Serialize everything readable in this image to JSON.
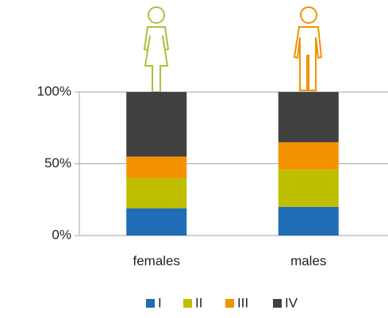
{
  "chart_data": {
    "type": "stacked_bar",
    "categories": [
      "females",
      "males"
    ],
    "series": [
      {
        "name": "I",
        "color": "#1f6db5",
        "values": [
          19,
          20
        ]
      },
      {
        "name": "II",
        "color": "#bfbf00",
        "values": [
          21,
          26
        ]
      },
      {
        "name": "III",
        "color": "#f39200",
        "values": [
          15,
          19
        ]
      },
      {
        "name": "IV",
        "color": "#404040",
        "values": [
          45,
          35
        ]
      }
    ],
    "ylim": [
      0,
      100
    ],
    "yticks": [
      {
        "value": 0,
        "label": "0%"
      },
      {
        "value": 50,
        "label": "50%"
      },
      {
        "value": 100,
        "label": "100%"
      }
    ],
    "grid": true,
    "legend": "bottom"
  }
}
